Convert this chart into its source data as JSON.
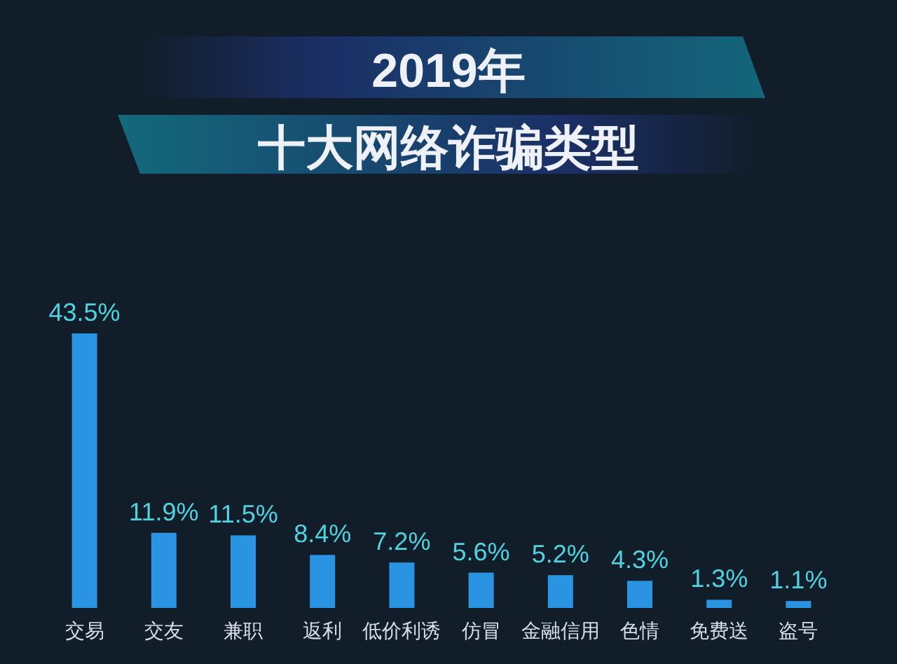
{
  "chart_data": {
    "type": "bar",
    "title": "2019年",
    "subtitle": "十大网络诈骗类型",
    "categories": [
      "交易",
      "交友",
      "兼职",
      "返利",
      "低价利诱",
      "仿冒",
      "金融信用",
      "色情",
      "免费送",
      "盗号"
    ],
    "values": [
      43.5,
      11.9,
      11.5,
      8.4,
      7.2,
      5.6,
      5.2,
      4.3,
      1.3,
      1.1
    ],
    "value_labels": [
      "43.5%",
      "11.9%",
      "11.5%",
      "8.4%",
      "7.2%",
      "5.6%",
      "5.2%",
      "4.3%",
      "1.3%",
      "1.1%"
    ],
    "color": "#2a93e2"
  }
}
